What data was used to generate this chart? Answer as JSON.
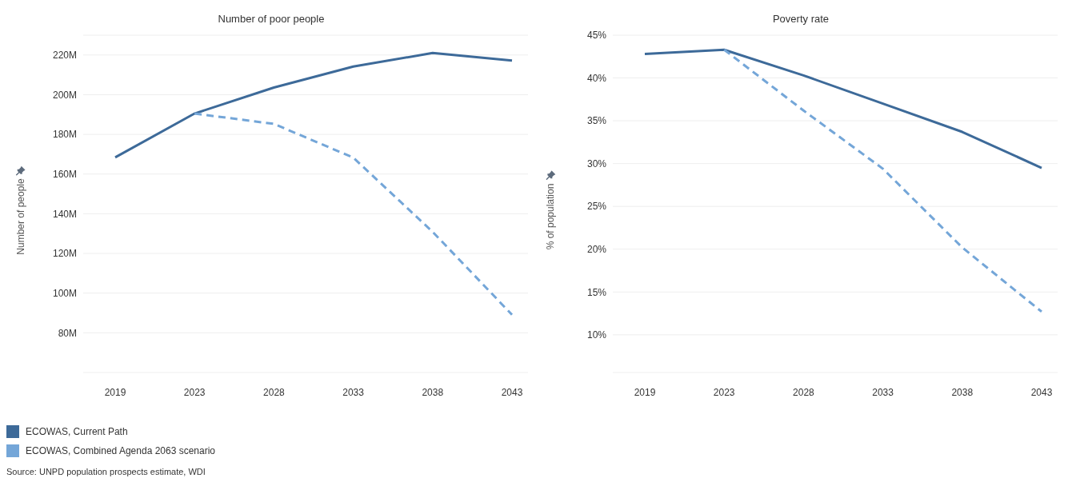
{
  "chart_data": [
    {
      "type": "line",
      "title": "Number of poor people",
      "ylabel": "Number of people",
      "categories": [
        "2019",
        "2023",
        "2028",
        "2033",
        "2038",
        "2043"
      ],
      "series": [
        {
          "name": "ECOWAS, Current Path",
          "color": "#3d6a99",
          "values": [
            168.4,
            190.5,
            203.6,
            214.2,
            221,
            217.2
          ],
          "line_style": "solid"
        },
        {
          "name": "ECOWAS, Combined Agenda 2063 scenario",
          "color": "#74a6d8",
          "values": [
            null,
            190.5,
            185.3,
            168.3,
            130.9,
            89.1
          ],
          "line_style": "dashed"
        }
      ],
      "ylim": [
        60,
        230
      ],
      "yticks": [
        {
          "value": 80,
          "label": "80M"
        },
        {
          "value": 100,
          "label": "100M"
        },
        {
          "value": 120,
          "label": "120M"
        },
        {
          "value": 140,
          "label": "140M"
        },
        {
          "value": 160,
          "label": "160M"
        },
        {
          "value": 180,
          "label": "180M"
        },
        {
          "value": 200,
          "label": "200M"
        },
        {
          "value": 220,
          "label": "220M"
        }
      ],
      "grid": "y",
      "legend": "bottom left",
      "marker": "none",
      "annotations": [
        "Source: UNPD population prospects estimate, WDI"
      ]
    },
    {
      "type": "line",
      "title": "Poverty rate",
      "ylabel": "% of population",
      "categories": [
        "2019",
        "2023",
        "2028",
        "2033",
        "2038",
        "2043"
      ],
      "series": [
        {
          "color": "#3d6a99",
          "values": [
            42.8,
            43.3,
            40.3,
            37.0,
            33.7,
            29.5
          ],
          "line_style": "solid"
        },
        {
          "color": "#74a6d8",
          "values": [
            null,
            43.3,
            36.2,
            29.4,
            20.2,
            12.7
          ],
          "line_style": "dashed"
        }
      ],
      "ylim": [
        5.6,
        45
      ],
      "yticks": [
        {
          "value": 10,
          "label": "10%"
        },
        {
          "value": 15,
          "label": "15%"
        },
        {
          "value": 20,
          "label": "20%"
        },
        {
          "value": 25,
          "label": "25%"
        },
        {
          "value": 30,
          "label": "30%"
        },
        {
          "value": 35,
          "label": "35%"
        },
        {
          "value": 40,
          "label": "40%"
        },
        {
          "value": 45,
          "label": "45%"
        }
      ],
      "grid": "y",
      "marker": "none"
    }
  ]
}
